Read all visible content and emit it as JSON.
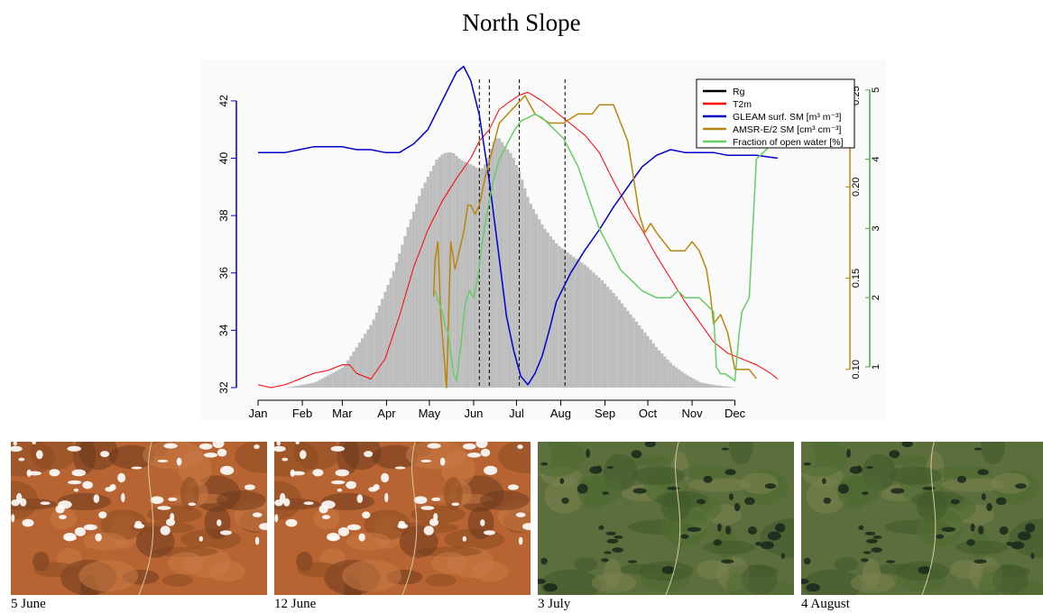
{
  "title": "North Slope",
  "chart_data": {
    "type": "line",
    "months": [
      "Jan",
      "Feb",
      "Mar",
      "Apr",
      "May",
      "Jun",
      "Jul",
      "Aug",
      "Sep",
      "Oct",
      "Nov",
      "Dec"
    ],
    "left_axis": {
      "ticks": [
        32,
        34,
        36,
        38,
        40,
        42
      ],
      "range": [
        32,
        42.5
      ],
      "color": "#0000cc"
    },
    "right_axis_1": {
      "ticks": [
        "0.10",
        "0.15",
        "0.20",
        "0.25"
      ],
      "range": [
        0.09,
        0.255
      ],
      "color": "#b8860b"
    },
    "right_axis_2": {
      "ticks": [
        1,
        2,
        3,
        4,
        5
      ],
      "range": [
        0.7,
        5.05
      ],
      "color": "#44aa44"
    },
    "vlines_doy": [
      156,
      163,
      184,
      216
    ],
    "rg_area": {
      "color": "#bdbdbd",
      "doy": [
        1,
        20,
        40,
        60,
        80,
        95,
        105,
        115,
        125,
        130,
        136,
        142,
        150,
        156,
        160,
        164,
        168,
        172,
        178,
        184,
        190,
        200,
        210,
        220,
        230,
        240,
        250,
        260,
        270,
        280,
        290,
        300,
        310,
        320,
        335,
        350,
        365
      ],
      "value": [
        0,
        0,
        0.02,
        0.08,
        0.25,
        0.45,
        0.62,
        0.77,
        0.88,
        0.905,
        0.91,
        0.88,
        0.86,
        0.84,
        0.87,
        0.94,
        0.97,
        0.94,
        0.9,
        0.82,
        0.72,
        0.62,
        0.55,
        0.51,
        0.47,
        0.42,
        0.36,
        0.29,
        0.22,
        0.15,
        0.09,
        0.05,
        0.02,
        0.01,
        0.0,
        0,
        0
      ]
    },
    "series": [
      {
        "name": "Rg",
        "color": "#000000",
        "width": 2,
        "axis": "left",
        "doy": [],
        "values": []
      },
      {
        "name": "T2m",
        "color": "#ff0000",
        "width": 1,
        "axis": "left",
        "doy": [
          1,
          10,
          20,
          30,
          40,
          50,
          60,
          65,
          70,
          80,
          90,
          100,
          110,
          120,
          130,
          140,
          150,
          156,
          163,
          170,
          178,
          184,
          190,
          200,
          210,
          220,
          230,
          240,
          250,
          260,
          270,
          280,
          290,
          300,
          310,
          320,
          330,
          340,
          350,
          360,
          365
        ],
        "values": [
          32.1,
          32.0,
          32.1,
          32.3,
          32.5,
          32.6,
          32.8,
          32.8,
          32.5,
          32.3,
          33.0,
          34.5,
          36.2,
          37.5,
          38.5,
          39.3,
          40.0,
          40.6,
          41.0,
          41.7,
          42.0,
          42.2,
          42.3,
          42.0,
          41.6,
          41.2,
          40.8,
          40.2,
          39.2,
          38.3,
          37.5,
          36.6,
          35.8,
          35.0,
          34.3,
          33.6,
          33.2,
          33.0,
          32.8,
          32.5,
          32.3
        ]
      },
      {
        "name": "GLEAM surf. SM [m³ m⁻³]",
        "color": "#0000cc",
        "width": 1.5,
        "axis": "left",
        "doy": [
          1,
          10,
          20,
          30,
          40,
          50,
          60,
          70,
          80,
          90,
          100,
          110,
          120,
          130,
          136,
          140,
          145,
          150,
          156,
          163,
          170,
          175,
          180,
          185,
          190,
          195,
          200,
          205,
          210,
          220,
          230,
          240,
          250,
          260,
          270,
          280,
          290,
          300,
          310,
          320,
          330,
          340,
          350,
          365
        ],
        "values": [
          40.2,
          40.2,
          40.2,
          40.3,
          40.4,
          40.4,
          40.4,
          40.3,
          40.3,
          40.2,
          40.2,
          40.5,
          41.0,
          42.0,
          42.6,
          43.0,
          43.2,
          42.7,
          41.5,
          39.2,
          36.5,
          34.5,
          33.3,
          32.4,
          32.1,
          32.5,
          33.1,
          34.0,
          35.0,
          36.0,
          36.8,
          37.5,
          38.3,
          39.0,
          39.7,
          40.1,
          40.3,
          40.2,
          40.2,
          40.2,
          40.1,
          40.1,
          40.1,
          40.0
        ]
      },
      {
        "name": "AMSR-E/2 SM [cm³ cm⁻³]",
        "color": "#b8860b",
        "width": 1.5,
        "axis": "right_1",
        "doy": [
          124,
          125,
          127,
          129,
          131,
          133,
          136,
          139,
          142,
          145,
          148,
          150,
          153,
          156,
          160,
          165,
          170,
          176,
          182,
          188,
          195,
          205,
          215,
          225,
          235,
          240,
          245,
          250,
          255,
          260,
          264,
          268,
          272,
          276,
          280,
          285,
          290,
          300,
          305,
          310,
          315,
          318,
          320,
          325,
          330,
          335,
          340,
          345,
          350
        ],
        "values": [
          0.14,
          0.16,
          0.17,
          0.13,
          0.11,
          0.09,
          0.17,
          0.155,
          0.165,
          0.175,
          0.19,
          0.19,
          0.185,
          0.19,
          0.205,
          0.22,
          0.235,
          0.24,
          0.245,
          0.25,
          0.24,
          0.235,
          0.235,
          0.24,
          0.24,
          0.245,
          0.245,
          0.245,
          0.235,
          0.225,
          0.205,
          0.185,
          0.175,
          0.18,
          0.175,
          0.17,
          0.165,
          0.165,
          0.17,
          0.165,
          0.155,
          0.14,
          0.125,
          0.13,
          0.12,
          0.1,
          0.1,
          0.1,
          0.095
        ]
      },
      {
        "name": "Fraction of open water [%]",
        "color": "#66cc66",
        "width": 1.5,
        "axis": "right_2",
        "doy": [
          125,
          128,
          130,
          132,
          134,
          136,
          138,
          140,
          143,
          146,
          149,
          152,
          155,
          158,
          162,
          166,
          170,
          175,
          180,
          185,
          190,
          195,
          200,
          205,
          210,
          215,
          220,
          225,
          230,
          235,
          240,
          245,
          250,
          255,
          260,
          265,
          270,
          275,
          280,
          285,
          290,
          295,
          300,
          305,
          310,
          315,
          320,
          322,
          325,
          328,
          335,
          338,
          340,
          345,
          350,
          365
        ],
        "values": [
          2.1,
          1.9,
          1.8,
          1.6,
          1.5,
          1.2,
          0.9,
          0.8,
          1.3,
          1.9,
          2.1,
          2.0,
          2.3,
          2.8,
          3.3,
          3.7,
          4.0,
          4.2,
          4.4,
          4.55,
          4.6,
          4.65,
          4.6,
          4.5,
          4.4,
          4.3,
          4.1,
          3.9,
          3.6,
          3.3,
          3.0,
          2.8,
          2.6,
          2.4,
          2.3,
          2.2,
          2.1,
          2.05,
          2.0,
          2.0,
          2.0,
          2.1,
          2.0,
          2.0,
          2.0,
          1.9,
          1.8,
          1.0,
          0.9,
          0.9,
          0.8,
          1.5,
          1.8,
          2.0,
          4.0,
          4.3
        ]
      }
    ]
  },
  "photos": [
    {
      "caption": "5 June",
      "style": "snow"
    },
    {
      "caption": "12 June",
      "style": "snow"
    },
    {
      "caption": "3  July",
      "style": "green"
    },
    {
      "caption": "4 August",
      "style": "green"
    }
  ]
}
